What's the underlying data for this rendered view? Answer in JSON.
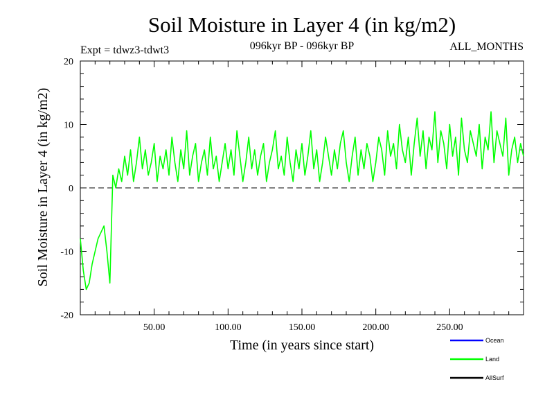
{
  "chart_data": {
    "type": "line",
    "title": "Soil Moisture in Layer 4 (in kg/m2)",
    "subtitle_left": "Expt = tdwz3-tdwt3",
    "subtitle_center": "096kyr BP - 096kyr BP",
    "subtitle_right": "ALL_MONTHS",
    "xlabel": "Time (in years since start)",
    "ylabel": "Soil Moisture in Layer 4 (in kg/m2)",
    "xlim": [
      0,
      300
    ],
    "ylim": [
      -20,
      20
    ],
    "x_ticks": [
      50,
      100,
      150,
      200,
      250
    ],
    "x_tick_labels": [
      "50.00",
      "100.00",
      "150.00",
      "200.00",
      "250.00"
    ],
    "y_ticks": [
      -20,
      -10,
      0,
      10,
      20
    ],
    "y_tick_labels": [
      "-20",
      "-10",
      "0",
      "10",
      "20"
    ],
    "reference_line": {
      "y": 0,
      "style": "dashed"
    },
    "legend_position": "bottom-right",
    "series": [
      {
        "name": "Ocean",
        "color": "#0000ff",
        "values": [],
        "x": []
      },
      {
        "name": "Land",
        "color": "#00ff00",
        "x": [
          0,
          2,
          4,
          6,
          8,
          10,
          12,
          14,
          16,
          18,
          20,
          22,
          24,
          26,
          28,
          30,
          32,
          34,
          36,
          38,
          40,
          42,
          44,
          46,
          48,
          50,
          52,
          54,
          56,
          58,
          60,
          62,
          64,
          66,
          68,
          70,
          72,
          74,
          76,
          78,
          80,
          82,
          84,
          86,
          88,
          90,
          92,
          94,
          96,
          98,
          100,
          102,
          104,
          106,
          108,
          110,
          112,
          114,
          116,
          118,
          120,
          122,
          124,
          126,
          128,
          130,
          132,
          134,
          136,
          138,
          140,
          142,
          144,
          146,
          148,
          150,
          152,
          154,
          156,
          158,
          160,
          162,
          164,
          166,
          168,
          170,
          172,
          174,
          176,
          178,
          180,
          182,
          184,
          186,
          188,
          190,
          192,
          194,
          196,
          198,
          200,
          202,
          204,
          206,
          208,
          210,
          212,
          214,
          216,
          218,
          220,
          222,
          224,
          226,
          228,
          230,
          232,
          234,
          236,
          238,
          240,
          242,
          244,
          246,
          248,
          250,
          252,
          254,
          256,
          258,
          260,
          262,
          264,
          266,
          268,
          270,
          272,
          274,
          276,
          278,
          280,
          282,
          284,
          286,
          288,
          290,
          292,
          294,
          296,
          298,
          300
        ],
        "values": [
          -8,
          -13,
          -16,
          -15,
          -12,
          -10,
          -8,
          -7,
          -6,
          -10,
          -15,
          2,
          0,
          3,
          1,
          5,
          2,
          6,
          1,
          4,
          8,
          3,
          6,
          2,
          4,
          7,
          1,
          5,
          3,
          6,
          2,
          8,
          4,
          1,
          6,
          3,
          9,
          2,
          5,
          7,
          1,
          4,
          6,
          2,
          8,
          3,
          5,
          1,
          4,
          7,
          3,
          6,
          2,
          9,
          5,
          1,
          4,
          8,
          3,
          6,
          2,
          5,
          7,
          1,
          4,
          6,
          9,
          3,
          5,
          2,
          8,
          4,
          1,
          6,
          3,
          7,
          2,
          5,
          9,
          3,
          6,
          1,
          4,
          8,
          5,
          2,
          6,
          3,
          7,
          9,
          4,
          1,
          5,
          8,
          2,
          6,
          3,
          7,
          5,
          1,
          4,
          8,
          6,
          2,
          9,
          5,
          7,
          3,
          10,
          6,
          4,
          8,
          2,
          7,
          11,
          5,
          9,
          3,
          8,
          6,
          12,
          4,
          9,
          7,
          3,
          10,
          5,
          8,
          2,
          11,
          6,
          4,
          9,
          7,
          5,
          10,
          3,
          8,
          6,
          12,
          4,
          9,
          7,
          5,
          11,
          2,
          6,
          8,
          4,
          7,
          5
        ]
      },
      {
        "name": "AllSurf",
        "color": "#000000",
        "values": [],
        "x": []
      }
    ]
  }
}
